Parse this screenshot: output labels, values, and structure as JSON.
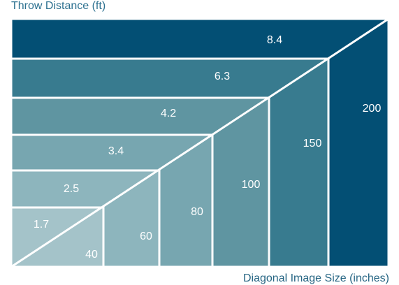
{
  "title": "Throw Distance (ft)",
  "xlabel": "Diagonal Image Size (inches)",
  "palette": {
    "text_on_dark": "#ffffff",
    "separator": "#ffffff",
    "title_color": "#2d7190"
  },
  "chart_data": {
    "type": "table",
    "title": "Throw Distance (ft)",
    "xlabel": "Diagonal Image Size (inches)",
    "ylabel": "Throw Distance (ft)",
    "rows": [
      {
        "diagonal_image_size_in": 40,
        "throw_distance_ft": 1.7,
        "color": "#a4c3c9"
      },
      {
        "diagonal_image_size_in": 60,
        "throw_distance_ft": 2.5,
        "color": "#8db5bd"
      },
      {
        "diagonal_image_size_in": 80,
        "throw_distance_ft": 3.4,
        "color": "#77a6b0"
      },
      {
        "diagonal_image_size_in": 100,
        "throw_distance_ft": 4.2,
        "color": "#5f95a1"
      },
      {
        "diagonal_image_size_in": 150,
        "throw_distance_ft": 6.3,
        "color": "#387b8f"
      },
      {
        "diagonal_image_size_in": 200,
        "throw_distance_ft": 8.4,
        "color": "#034f74"
      }
    ]
  }
}
